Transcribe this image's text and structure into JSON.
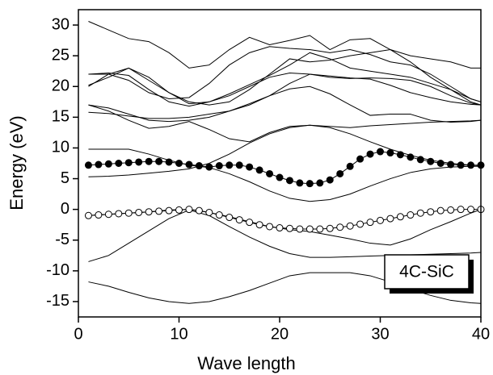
{
  "chart_data": {
    "type": "line",
    "annotation": "4C-SiC",
    "xlabel": "Wave length",
    "ylabel": "Energy (eV)",
    "xlim": [
      0,
      40
    ],
    "xticks": [
      0,
      10,
      20,
      30,
      40
    ],
    "ylim": [
      -17.5,
      32.5
    ],
    "yticks": [
      -15,
      -10,
      -5,
      0,
      5,
      10,
      15,
      20,
      25,
      30
    ],
    "grid": false,
    "x": [
      1,
      3,
      5,
      7,
      9,
      11,
      13,
      15,
      17,
      19,
      21,
      23,
      25,
      27,
      29,
      31,
      33,
      35,
      37,
      39,
      40
    ],
    "series": [
      {
        "color": "#000000",
        "values": [
          -11.8,
          -12.5,
          -13.5,
          -14.4,
          -15.0,
          -15.3,
          -15.0,
          -14.2,
          -13.2,
          -12.0,
          -10.8,
          -10.3,
          -10.3,
          -10.3,
          -10.8,
          -11.8,
          -13.0,
          -14.0,
          -14.8,
          -15.2,
          -15.3
        ]
      },
      {
        "color": "#000000",
        "values": [
          -8.5,
          -7.5,
          -5.5,
          -3.5,
          -1.5,
          -0.1,
          -1.0,
          -2.8,
          -4.5,
          -6.0,
          -7.2,
          -7.8,
          -7.8,
          -7.7,
          -7.6,
          -7.5,
          -7.4,
          -7.3,
          -7.2,
          -7.1,
          -7.0
        ]
      },
      {
        "color": "#000000",
        "values": [
          -1.0,
          -0.8,
          -0.6,
          -0.4,
          -0.1,
          0.0,
          -0.5,
          -1.2,
          -2.0,
          -2.8,
          -3.3,
          -3.6,
          -4.2,
          -4.8,
          -5.5,
          -5.8,
          -4.8,
          -3.3,
          -2.0,
          -0.6,
          0.0
        ]
      },
      {
        "color": "#000000",
        "values": [
          9.8,
          9.8,
          9.8,
          9.0,
          8.0,
          7.2,
          6.8,
          5.8,
          4.5,
          3.0,
          1.8,
          1.3,
          1.6,
          2.5,
          3.8,
          5.0,
          6.0,
          6.6,
          6.9,
          7.0,
          7.0
        ]
      },
      {
        "color": "#000000",
        "values": [
          5.3,
          5.4,
          5.6,
          5.9,
          6.2,
          6.6,
          7.5,
          9.0,
          10.8,
          12.3,
          13.3,
          13.7,
          13.3,
          12.3,
          11.0,
          9.8,
          8.8,
          8.0,
          7.5,
          7.2,
          7.1
        ]
      },
      {
        "color": "#000000",
        "values": [
          17.0,
          16.0,
          14.5,
          13.2,
          13.5,
          14.3,
          13.0,
          11.5,
          11.0,
          12.5,
          13.5,
          13.7,
          13.5,
          13.3,
          13.6,
          13.8,
          14.0,
          14.2,
          14.3,
          14.4,
          14.5
        ]
      },
      {
        "color": "#000000",
        "values": [
          15.8,
          15.6,
          15.2,
          14.8,
          14.8,
          15.0,
          15.5,
          16.0,
          17.0,
          18.5,
          19.6,
          20.0,
          18.8,
          17.0,
          15.3,
          15.5,
          15.5,
          14.5,
          14.2,
          14.3,
          14.5
        ]
      },
      {
        "color": "#000000",
        "values": [
          17.0,
          16.5,
          15.5,
          14.5,
          14.3,
          14.5,
          15.0,
          16.0,
          17.2,
          18.5,
          20.5,
          22.0,
          21.7,
          21.4,
          21.2,
          20.2,
          19.0,
          18.2,
          17.5,
          17.1,
          17.0
        ]
      },
      {
        "color": "#000000",
        "values": [
          20.2,
          21.5,
          23.0,
          21.5,
          19.0,
          17.2,
          17.5,
          18.5,
          20.0,
          21.5,
          22.2,
          22.0,
          21.5,
          21.3,
          21.4,
          21.3,
          21.0,
          20.0,
          18.5,
          17.3,
          17.0
        ]
      },
      {
        "color": "#000000",
        "values": [
          22.0,
          22.2,
          21.8,
          19.5,
          17.5,
          16.8,
          17.5,
          18.8,
          20.3,
          21.8,
          23.5,
          25.5,
          24.5,
          23.0,
          22.5,
          22.0,
          21.5,
          20.5,
          19.5,
          18.0,
          17.5
        ]
      },
      {
        "color": "#000000",
        "values": [
          30.6,
          29.2,
          27.8,
          27.3,
          25.5,
          23.0,
          23.5,
          26.0,
          28.0,
          26.8,
          27.5,
          28.3,
          26.0,
          27.6,
          27.8,
          26.0,
          25.0,
          24.5,
          24.0,
          23.0,
          23.0
        ]
      },
      {
        "color": "#000000",
        "values": [
          22.0,
          22.0,
          21.0,
          19.0,
          18.0,
          18.2,
          20.5,
          23.5,
          25.5,
          26.5,
          26.2,
          26.0,
          25.5,
          26.0,
          25.2,
          24.0,
          23.5,
          22.0,
          20.0,
          18.0,
          17.5
        ]
      },
      {
        "color": "#000000",
        "values": [
          20.0,
          22.0,
          23.0,
          21.0,
          19.0,
          17.5,
          17.0,
          17.5,
          19.5,
          22.0,
          24.5,
          24.0,
          24.3,
          25.0,
          25.5,
          26.0,
          24.0,
          21.5,
          19.5,
          17.5,
          17.0
        ]
      },
      {
        "color": "#000000",
        "marker": "filled",
        "x": [
          1,
          2,
          3,
          4,
          5,
          6,
          7,
          8,
          9,
          10,
          11,
          12,
          13,
          14,
          15,
          16,
          17,
          18,
          19,
          20,
          21,
          22,
          23,
          24,
          25,
          26,
          27,
          28,
          29,
          30,
          31,
          32,
          33,
          34,
          35,
          36,
          37,
          38,
          39,
          40
        ],
        "values": [
          7.2,
          7.3,
          7.4,
          7.5,
          7.6,
          7.7,
          7.8,
          7.8,
          7.7,
          7.5,
          7.3,
          7.1,
          6.9,
          7.1,
          7.2,
          7.2,
          6.9,
          6.4,
          5.8,
          5.2,
          4.7,
          4.3,
          4.2,
          4.3,
          4.8,
          5.8,
          7.0,
          8.2,
          9.0,
          9.4,
          9.2,
          8.9,
          8.5,
          8.1,
          7.8,
          7.5,
          7.3,
          7.2,
          7.2,
          7.2
        ]
      },
      {
        "color": "#000000",
        "marker": "open",
        "x": [
          1,
          2,
          3,
          4,
          5,
          6,
          7,
          8,
          9,
          10,
          11,
          12,
          13,
          14,
          15,
          16,
          17,
          18,
          19,
          20,
          21,
          22,
          23,
          24,
          25,
          26,
          27,
          28,
          29,
          30,
          31,
          32,
          33,
          34,
          35,
          36,
          37,
          38,
          39,
          40
        ],
        "values": [
          -1.0,
          -0.9,
          -0.8,
          -0.7,
          -0.6,
          -0.5,
          -0.4,
          -0.3,
          -0.2,
          -0.1,
          0.0,
          -0.2,
          -0.5,
          -0.9,
          -1.3,
          -1.7,
          -2.1,
          -2.5,
          -2.8,
          -3.0,
          -3.1,
          -3.2,
          -3.2,
          -3.2,
          -3.1,
          -2.9,
          -2.7,
          -2.4,
          -2.1,
          -1.8,
          -1.5,
          -1.2,
          -0.9,
          -0.6,
          -0.4,
          -0.2,
          -0.1,
          0.0,
          0.0,
          0.0
        ]
      }
    ]
  }
}
